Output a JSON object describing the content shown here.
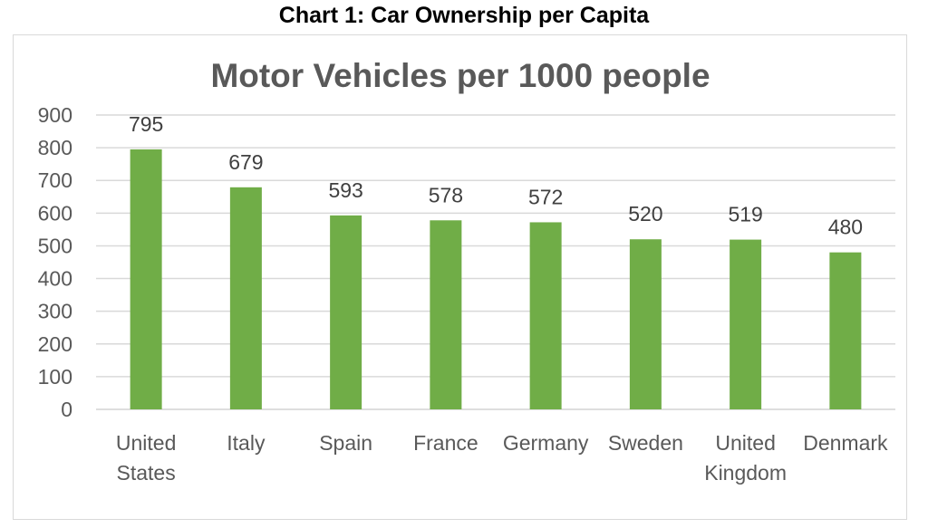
{
  "page": {
    "heading": "Chart 1: Car Ownership per Capita"
  },
  "chart_data": {
    "type": "bar",
    "title": "Motor Vehicles per 1000 people",
    "xlabel": "",
    "ylabel": "",
    "ylim": [
      0,
      900
    ],
    "yticks": [
      0,
      100,
      200,
      300,
      400,
      500,
      600,
      700,
      800,
      900
    ],
    "grid": true,
    "legend": "none",
    "bar_color": "#70ad47",
    "gridline_color": "#d9d9d9",
    "text_color": "#595959",
    "categories": [
      [
        "United",
        "States"
      ],
      [
        "Italy"
      ],
      [
        "Spain"
      ],
      [
        "France"
      ],
      [
        "Germany"
      ],
      [
        "Sweden"
      ],
      [
        "United",
        "Kingdom"
      ],
      [
        "Denmark"
      ]
    ],
    "values": [
      795,
      679,
      593,
      578,
      572,
      520,
      519,
      480
    ],
    "data_labels": [
      "795",
      "679",
      "593",
      "578",
      "572",
      "520",
      "519",
      "480"
    ]
  }
}
